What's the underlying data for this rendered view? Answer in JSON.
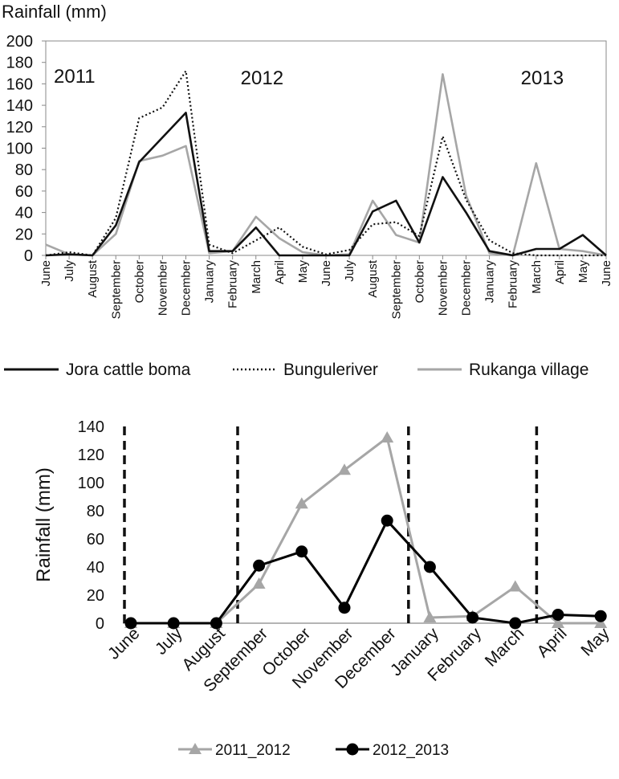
{
  "chart_data": [
    {
      "type": "line",
      "ylabel": "Rainfall (mm)",
      "ylim": [
        0,
        200
      ],
      "yticks": [
        0,
        20,
        40,
        60,
        80,
        100,
        120,
        140,
        160,
        180,
        200
      ],
      "grid": false,
      "legend_position": "bottom",
      "categories": [
        "June",
        "July",
        "August",
        "September",
        "October",
        "November",
        "December",
        "January",
        "February",
        "March",
        "April",
        "May",
        "June",
        "July",
        "August",
        "September",
        "October",
        "November",
        "December",
        "January",
        "February",
        "March",
        "April",
        "May",
        "June"
      ],
      "annotations": [
        {
          "text": "2011",
          "at_category_index": 0
        },
        {
          "text": "2012",
          "at_category_index": 8
        },
        {
          "text": "2013",
          "at_category_index": 20
        }
      ],
      "series": [
        {
          "name": "Jora cattle boma",
          "style": "solid",
          "color": "#111111",
          "values": [
            0,
            1,
            0,
            28,
            87,
            110,
            133,
            4,
            4,
            26,
            0,
            0,
            0,
            0,
            41,
            51,
            12,
            73,
            40,
            4,
            0,
            6,
            6,
            19,
            0
          ]
        },
        {
          "name": "Bunguleriver",
          "style": "dotted",
          "color": "#111111",
          "values": [
            0,
            3,
            0,
            35,
            128,
            138,
            172,
            10,
            2,
            14,
            26,
            8,
            1,
            5,
            29,
            31,
            18,
            111,
            52,
            14,
            2,
            0,
            0,
            0,
            0
          ]
        },
        {
          "name": "Rukanga village",
          "style": "solid",
          "color": "#a6a6a6",
          "values": [
            10,
            1,
            0,
            20,
            88,
            93,
            102,
            2,
            4,
            36,
            16,
            3,
            0,
            1,
            51,
            19,
            12,
            169,
            56,
            2,
            0,
            86,
            6,
            4,
            0
          ]
        }
      ]
    },
    {
      "type": "line",
      "ylabel": "Rainfall (mm)",
      "ylim": [
        0,
        140
      ],
      "yticks": [
        0,
        20,
        40,
        60,
        80,
        100,
        120,
        140
      ],
      "grid": false,
      "legend_position": "bottom",
      "categories": [
        "June",
        "July",
        "August",
        "September",
        "October",
        "November",
        "December",
        "January",
        "February",
        "March",
        "April",
        "May"
      ],
      "vertical_dashed_lines_between": [
        [
          "",
          "June"
        ],
        [
          "August",
          "September"
        ],
        [
          "December",
          "January"
        ],
        [
          "March",
          "April"
        ]
      ],
      "series": [
        {
          "name": "2011_2012",
          "marker": "triangle",
          "color": "#a6a6a6",
          "values": [
            0,
            0,
            0,
            28,
            85,
            109,
            132,
            4,
            5,
            26,
            0,
            0
          ]
        },
        {
          "name": "2012_2013",
          "marker": "circle",
          "color": "#000000",
          "values": [
            0,
            0,
            0,
            41,
            51,
            11,
            73,
            40,
            4,
            0,
            6,
            5
          ]
        }
      ]
    }
  ]
}
